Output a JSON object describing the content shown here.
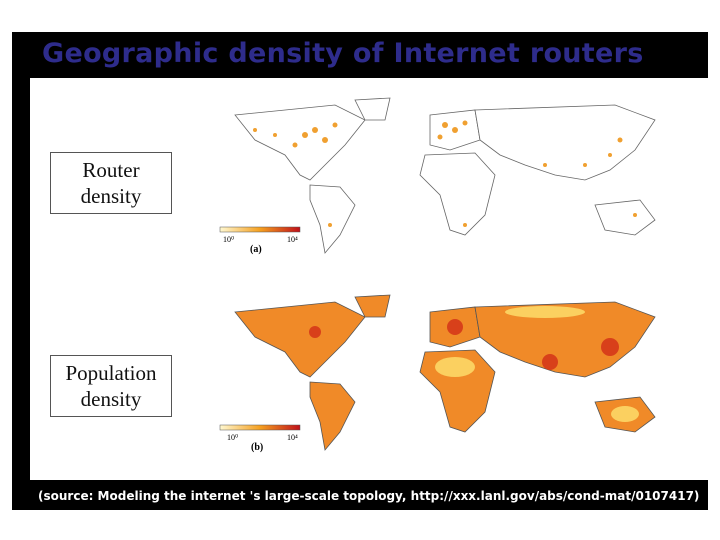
{
  "header": {
    "title": "Geographic density of Internet routers"
  },
  "panels": [
    {
      "label": "Router density",
      "caption": "(a)",
      "scale_min": "10⁰",
      "scale_max": "10⁴"
    },
    {
      "label": "Population density",
      "caption": "(b)",
      "scale_min": "10⁰",
      "scale_max": "10⁴"
    }
  ],
  "footer": {
    "source": "(source: Modeling the internet 's large-scale topology, http://xxx.lanl.gov/abs/cond-mat/0107417)"
  }
}
